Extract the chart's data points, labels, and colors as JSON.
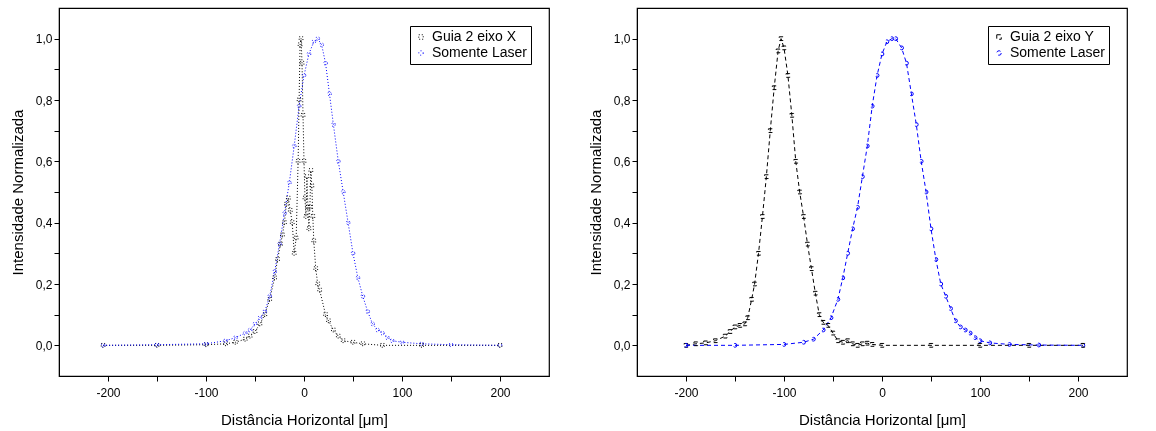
{
  "chart_data": [
    {
      "type": "line",
      "xlabel": "Distância Horizontal [μm]",
      "ylabel": "Intensidade Normalizada",
      "xlim": [
        -250,
        250
      ],
      "ylim": [
        -0.1,
        1.1
      ],
      "xticks": [
        -200,
        {
          "value": -150,
          "label": null
        },
        -100,
        {
          "value": -50,
          "label": null
        },
        0,
        {
          "value": 50,
          "label": null
        },
        100,
        {
          "value": 150,
          "label": null
        },
        200
      ],
      "yticks": [
        {
          "value": 0,
          "label": "0,0"
        },
        {
          "value": 0.1,
          "label": null
        },
        {
          "value": 0.2,
          "label": "0,2"
        },
        {
          "value": 0.3,
          "label": null
        },
        {
          "value": 0.4,
          "label": "0,4"
        },
        {
          "value": 0.5,
          "label": null
        },
        {
          "value": 0.6,
          "label": "0,6"
        },
        {
          "value": 0.7,
          "label": null
        },
        {
          "value": 0.8,
          "label": "0,8"
        },
        {
          "value": 0.9,
          "label": null
        },
        {
          "value": 1,
          "label": "1,0"
        }
      ],
      "legend": "top right",
      "series": [
        {
          "name": "Guia 2 eixo X",
          "color": "#000000",
          "marker": "square",
          "line_style": "dotted",
          "x": [
            -205,
            -150,
            -100,
            -80,
            -70,
            -60,
            -55,
            -50,
            -45,
            -40,
            -35,
            -30,
            -27,
            -24,
            -22,
            -20,
            -18,
            -16,
            -14,
            -12,
            -10,
            -8,
            -6,
            -5,
            -4,
            -3,
            -2,
            -1,
            0,
            1,
            2,
            3,
            4,
            5,
            6,
            7,
            8,
            9,
            10,
            12,
            14,
            16,
            22,
            25,
            30,
            35,
            40,
            50,
            60,
            80,
            120,
            200
          ],
          "values": [
            0,
            0,
            0.002,
            0.005,
            0.01,
            0.02,
            0.03,
            0.045,
            0.07,
            0.1,
            0.15,
            0.22,
            0.28,
            0.33,
            0.36,
            0.4,
            0.46,
            0.48,
            0.44,
            0.4,
            0.3,
            0.35,
            0.6,
            0.8,
            0.98,
            1.0,
            0.92,
            0.75,
            0.6,
            0.48,
            0.42,
            0.55,
            0.45,
            0.38,
            0.45,
            0.57,
            0.52,
            0.42,
            0.34,
            0.25,
            0.2,
            0.18,
            0.1,
            0.08,
            0.05,
            0.03,
            0.015,
            0.01,
            0.005,
            0,
            0,
            0
          ]
        },
        {
          "name": "Somente Laser",
          "color": "#0000ff",
          "marker": "circle",
          "line_style": "dotted",
          "x": [
            -205,
            -150,
            -100,
            -80,
            -70,
            -60,
            -55,
            -50,
            -45,
            -40,
            -35,
            -30,
            -25,
            -20,
            -15,
            -10,
            -5,
            0,
            5,
            10,
            14,
            18,
            22,
            26,
            30,
            35,
            40,
            45,
            50,
            55,
            60,
            65,
            70,
            75,
            80,
            85,
            90,
            100,
            120,
            150,
            200
          ],
          "values": [
            0,
            0.002,
            0.005,
            0.015,
            0.025,
            0.04,
            0.05,
            0.07,
            0.09,
            0.11,
            0.16,
            0.24,
            0.33,
            0.43,
            0.53,
            0.65,
            0.78,
            0.88,
            0.95,
            0.99,
            1.0,
            0.98,
            0.92,
            0.82,
            0.72,
            0.6,
            0.5,
            0.4,
            0.3,
            0.22,
            0.16,
            0.11,
            0.07,
            0.05,
            0.04,
            0.025,
            0.015,
            0.01,
            0.005,
            0.002,
            0
          ]
        }
      ]
    },
    {
      "type": "line",
      "xlabel": "Distância Horizontal [μm]",
      "ylabel": "Intensidade Normalizada",
      "xlim": [
        -250,
        250
      ],
      "ylim": [
        -0.1,
        1.1
      ],
      "xticks": [
        -200,
        {
          "value": -150,
          "label": null
        },
        -100,
        {
          "value": -50,
          "label": null
        },
        0,
        {
          "value": 50,
          "label": null
        },
        100,
        {
          "value": 150,
          "label": null
        },
        200
      ],
      "yticks": [
        {
          "value": 0,
          "label": "0,0"
        },
        {
          "value": 0.1,
          "label": null
        },
        {
          "value": 0.2,
          "label": "0,2"
        },
        {
          "value": 0.3,
          "label": null
        },
        {
          "value": 0.4,
          "label": "0,4"
        },
        {
          "value": 0.5,
          "label": null
        },
        {
          "value": 0.6,
          "label": "0,6"
        },
        {
          "value": 0.7,
          "label": null
        },
        {
          "value": 0.8,
          "label": "0,8"
        },
        {
          "value": 0.9,
          "label": null
        },
        {
          "value": 1,
          "label": "1,0"
        }
      ],
      "legend": "top right",
      "series": [
        {
          "name": "Guia 2 eixo Y",
          "color": "#000000",
          "marker": "square",
          "line_style": "dashed",
          "x": [
            -200,
            -190,
            -180,
            -170,
            -160,
            -155,
            -150,
            -145,
            -140,
            -137,
            -133,
            -130,
            -126,
            -122,
            -118,
            -114,
            -110,
            -106,
            -103,
            -100,
            -96,
            -92,
            -88,
            -84,
            -80,
            -76,
            -72,
            -68,
            -64,
            -60,
            -55,
            -50,
            -45,
            -40,
            -35,
            -30,
            -25,
            -20,
            -15,
            -10,
            0,
            50,
            100,
            150,
            205
          ],
          "values": [
            0,
            0.005,
            0.008,
            0.015,
            0.03,
            0.045,
            0.06,
            0.065,
            0.07,
            0.09,
            0.15,
            0.2,
            0.3,
            0.42,
            0.55,
            0.7,
            0.84,
            0.96,
            1.0,
            0.97,
            0.88,
            0.75,
            0.6,
            0.5,
            0.42,
            0.33,
            0.25,
            0.17,
            0.1,
            0.075,
            0.065,
            0.04,
            0.015,
            0.01,
            0.015,
            0.005,
            0,
            0.005,
            0.007,
            0.003,
            0,
            0,
            0,
            0,
            0
          ]
        },
        {
          "name": "Somente Laser",
          "color": "#0000ff",
          "marker": "circle",
          "line_style": "dashed",
          "x": [
            -200,
            -150,
            -100,
            -80,
            -70,
            -60,
            -52,
            -45,
            -40,
            -35,
            -30,
            -25,
            -20,
            -15,
            -10,
            -5,
            0,
            5,
            10,
            14,
            20,
            25,
            30,
            35,
            40,
            45,
            50,
            55,
            60,
            65,
            70,
            75,
            80,
            85,
            90,
            95,
            100,
            110,
            130,
            160,
            205
          ],
          "values": [
            0,
            0,
            0.003,
            0.01,
            0.02,
            0.05,
            0.09,
            0.15,
            0.22,
            0.3,
            0.38,
            0.45,
            0.55,
            0.65,
            0.78,
            0.88,
            0.95,
            0.99,
            1.0,
            1.0,
            0.97,
            0.92,
            0.82,
            0.72,
            0.6,
            0.5,
            0.38,
            0.28,
            0.2,
            0.16,
            0.12,
            0.08,
            0.06,
            0.05,
            0.04,
            0.025,
            0.015,
            0.008,
            0.003,
            0.001,
            0
          ]
        }
      ]
    }
  ]
}
